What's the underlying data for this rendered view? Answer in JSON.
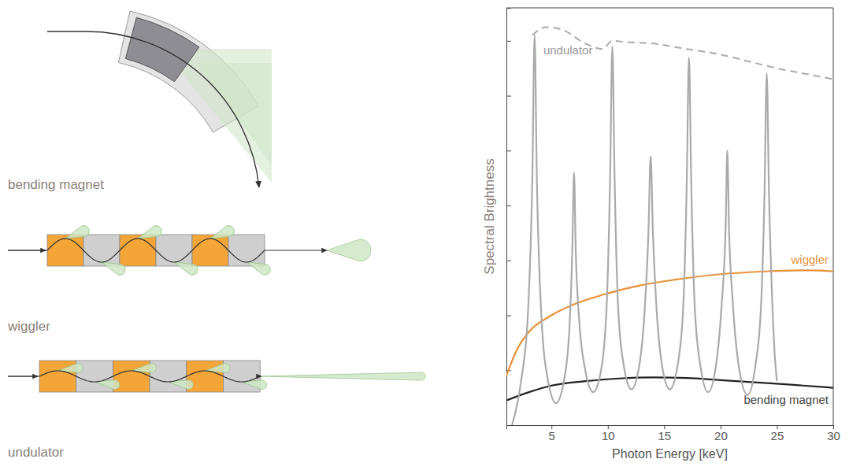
{
  "chart_data": {
    "type": "line",
    "xlabel": "Photon Energy [keV]",
    "ylabel": "Spectral Brightness",
    "xlim": [
      1,
      30
    ],
    "ylim": [
      0,
      7.6
    ],
    "xticks": [
      5,
      10,
      15,
      20,
      25,
      30
    ],
    "yticks": [
      1,
      2,
      3,
      4,
      5,
      6,
      7
    ],
    "tick_labels": "x",
    "grid": false,
    "series": [
      {
        "name": "undulator",
        "color": "#aaaaaa",
        "line_style": "solid",
        "x": [
          1.5,
          2.3,
          2.9,
          3.3,
          3.5,
          3.7,
          4.1,
          4.7,
          5.4,
          6.1,
          6.6,
          6.85,
          7.0,
          7.15,
          7.5,
          8.0,
          8.7,
          9.4,
          9.9,
          10.2,
          10.4,
          10.6,
          10.9,
          11.4,
          12.1,
          12.8,
          13.3,
          13.6,
          13.8,
          14.0,
          14.3,
          14.8,
          15.5,
          16.2,
          16.7,
          17.0,
          17.2,
          17.4,
          17.7,
          18.2,
          18.9,
          19.6,
          20.1,
          20.45,
          20.6,
          20.75,
          21.1,
          21.6,
          22.4,
          23.1,
          23.6,
          23.9,
          24.1,
          24.3,
          24.6,
          24.8,
          25.0
        ],
        "values": [
          0,
          0.8,
          2.0,
          4.5,
          7.1,
          4.5,
          2.0,
          0.8,
          0.4,
          0.8,
          1.8,
          3.2,
          4.6,
          3.2,
          1.8,
          1.0,
          0.6,
          1.0,
          2.2,
          4.5,
          6.9,
          4.5,
          2.2,
          1.1,
          0.65,
          1.1,
          2.2,
          3.5,
          4.9,
          3.5,
          2.2,
          1.1,
          0.65,
          1.1,
          2.2,
          4.4,
          6.7,
          4.4,
          2.2,
          1.1,
          0.6,
          1.1,
          2.2,
          3.6,
          5.0,
          3.6,
          2.2,
          1.1,
          0.55,
          1.1,
          2.2,
          4.2,
          6.4,
          4.2,
          2.2,
          1.3,
          0.8
        ]
      },
      {
        "color": "#aaaaaa",
        "line_style": "dashed",
        "x": [
          3.3,
          4.5,
          6,
          8,
          9.5,
          10.4,
          11.5,
          14,
          17,
          20,
          23,
          25,
          27.5,
          30
        ],
        "values": [
          7.1,
          7.25,
          7.2,
          6.95,
          6.85,
          7.0,
          6.98,
          6.95,
          6.85,
          6.75,
          6.6,
          6.5,
          6.4,
          6.3
        ]
      },
      {
        "name": "wiggler",
        "color": "#e8923a",
        "line_style": "solid",
        "x": [
          1,
          2,
          3,
          5,
          7,
          10,
          13,
          16,
          20,
          24,
          28,
          30
        ],
        "values": [
          0.9,
          1.4,
          1.7,
          2.0,
          2.2,
          2.4,
          2.55,
          2.65,
          2.75,
          2.8,
          2.82,
          2.8
        ]
      },
      {
        "name": "bending magnet",
        "color": "#222222",
        "line_style": "solid",
        "x": [
          1,
          3,
          5,
          8,
          11,
          14,
          17,
          20,
          23,
          26,
          30
        ],
        "values": [
          0.45,
          0.6,
          0.72,
          0.8,
          0.85,
          0.87,
          0.86,
          0.82,
          0.78,
          0.74,
          0.68
        ]
      }
    ]
  },
  "diagrams": [
    {
      "label": "bending magnet"
    },
    {
      "label": "wiggler"
    },
    {
      "label": "undulator"
    }
  ]
}
